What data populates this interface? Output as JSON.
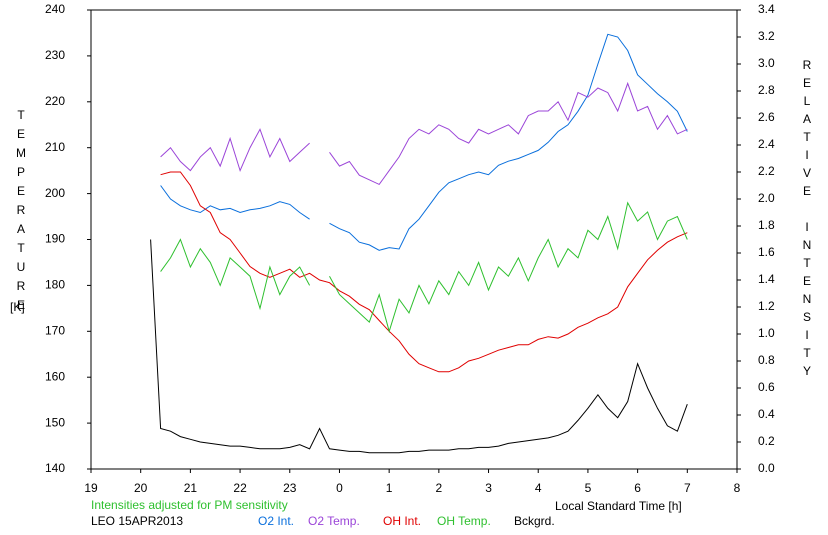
{
  "chart_data": {
    "type": "line",
    "title": "LEO 15APR2013",
    "subtitle": "Intensities adjusted for PM sensitivity",
    "xlabel": "Local Standard Time [h]",
    "ylabel": "TEMPERATURE",
    "yunit": "[K]",
    "y2label": "RELATIVE INTENSITY",
    "xlim": [
      19,
      32
    ],
    "xticks": [
      19,
      20,
      21,
      22,
      23,
      {
        "value": 24,
        "label": "0"
      },
      {
        "value": 25,
        "label": "1"
      },
      {
        "value": 26,
        "label": "2"
      },
      {
        "value": 27,
        "label": "3"
      },
      {
        "value": 28,
        "label": "4"
      },
      {
        "value": 29,
        "label": "5"
      },
      {
        "value": 30,
        "label": "6"
      },
      {
        "value": 31,
        "label": "7"
      },
      {
        "value": 32,
        "label": "8"
      }
    ],
    "ylim": [
      140,
      240
    ],
    "yticks": [
      140,
      150,
      160,
      170,
      180,
      190,
      200,
      210,
      220,
      230,
      240
    ],
    "y2lim": [
      0,
      3.4
    ],
    "y2ticks": [
      {
        "value": 0,
        "label": "0.0"
      },
      0.2,
      0.4,
      0.6,
      0.8,
      {
        "value": 1,
        "label": "1.0"
      },
      1.2,
      1.4,
      1.6,
      1.8,
      {
        "value": 2,
        "label": "2.0"
      },
      2.2,
      2.4,
      2.6,
      2.8,
      {
        "value": 3,
        "label": "3.0"
      },
      3.2,
      3.4
    ],
    "x": [
      20.2,
      20.4,
      20.6,
      20.8,
      21.0,
      21.2,
      21.4,
      21.6,
      21.8,
      22.0,
      22.2,
      22.4,
      22.6,
      22.8,
      23.0,
      23.2,
      23.4,
      23.6,
      23.8,
      24.0,
      24.2,
      24.4,
      24.6,
      24.8,
      25.0,
      25.2,
      25.4,
      25.6,
      25.8,
      26.0,
      26.2,
      26.4,
      26.6,
      26.8,
      27.0,
      27.2,
      27.4,
      27.6,
      27.8,
      28.0,
      28.2,
      28.4,
      28.6,
      28.8,
      29.0,
      29.2,
      29.4,
      29.6,
      29.8,
      30.0,
      30.2,
      30.4,
      30.6,
      30.8,
      31.0
    ],
    "series": [
      {
        "name": "O2 Int.",
        "color": "#0a6fdc",
        "axis": "y2",
        "values": [
          null,
          2.1,
          2.0,
          1.95,
          1.92,
          1.9,
          1.95,
          1.92,
          1.93,
          1.9,
          1.92,
          1.93,
          1.95,
          1.98,
          1.96,
          1.9,
          1.85,
          null,
          1.82,
          1.78,
          1.75,
          1.68,
          1.66,
          1.62,
          1.64,
          1.63,
          1.78,
          1.85,
          1.95,
          2.05,
          2.12,
          2.15,
          2.18,
          2.2,
          2.18,
          2.25,
          2.28,
          2.3,
          2.33,
          2.36,
          2.42,
          2.5,
          2.55,
          2.65,
          2.77,
          3.0,
          3.22,
          3.2,
          3.1,
          2.92,
          2.85,
          2.78,
          2.72,
          2.65,
          2.5
        ]
      },
      {
        "name": "O2 Temp.",
        "color": "#9b45d8",
        "values": [
          null,
          208,
          210,
          207,
          205,
          208,
          210,
          206,
          212,
          205,
          210,
          214,
          208,
          212,
          207,
          209,
          211,
          null,
          209,
          206,
          207,
          204,
          203,
          202,
          205,
          208,
          212,
          214,
          213,
          215,
          214,
          212,
          211,
          214,
          213,
          214,
          215,
          213,
          217,
          218,
          218,
          220,
          216,
          222,
          221,
          223,
          222,
          218,
          224,
          218,
          219,
          214,
          217,
          213,
          214
        ]
      },
      {
        "name": "OH Int.",
        "color": "#e00000",
        "axis": "y2",
        "values": [
          null,
          2.18,
          2.2,
          2.2,
          2.1,
          1.95,
          1.9,
          1.75,
          1.7,
          1.6,
          1.5,
          1.45,
          1.42,
          1.45,
          1.48,
          1.42,
          1.45,
          1.4,
          1.38,
          1.32,
          1.28,
          1.22,
          1.18,
          1.1,
          1.02,
          0.95,
          0.85,
          0.78,
          0.75,
          0.72,
          0.72,
          0.75,
          0.8,
          0.82,
          0.85,
          0.88,
          0.9,
          0.92,
          0.92,
          0.96,
          0.98,
          0.97,
          1.0,
          1.05,
          1.08,
          1.12,
          1.15,
          1.2,
          1.35,
          1.45,
          1.55,
          1.62,
          1.68,
          1.72,
          1.75
        ]
      },
      {
        "name": "OH Temp.",
        "color": "#2fc02f",
        "values": [
          null,
          183,
          186,
          190,
          184,
          188,
          185,
          180,
          186,
          184,
          182,
          175,
          184,
          178,
          182,
          184,
          180,
          null,
          182,
          178,
          176,
          174,
          172,
          178,
          170,
          177,
          174,
          180,
          176,
          181,
          178,
          183,
          180,
          185,
          179,
          184,
          182,
          186,
          181,
          186,
          190,
          184,
          188,
          186,
          192,
          190,
          195,
          188,
          198,
          194,
          196,
          190,
          194,
          195,
          190
        ]
      },
      {
        "name": "Bckgrd.",
        "color": "#000000",
        "axis": "y2",
        "values": [
          1.7,
          0.3,
          0.28,
          0.24,
          0.22,
          0.2,
          0.19,
          0.18,
          0.17,
          0.17,
          0.16,
          0.15,
          0.15,
          0.15,
          0.16,
          0.18,
          0.15,
          0.3,
          0.15,
          0.14,
          0.13,
          0.13,
          0.12,
          0.12,
          0.12,
          0.12,
          0.13,
          0.13,
          0.14,
          0.14,
          0.14,
          0.15,
          0.15,
          0.16,
          0.16,
          0.17,
          0.19,
          0.2,
          0.21,
          0.22,
          0.23,
          0.25,
          0.28,
          0.36,
          0.45,
          0.55,
          0.45,
          0.38,
          0.5,
          0.78,
          0.6,
          0.45,
          0.32,
          0.28,
          0.48
        ]
      }
    ]
  }
}
